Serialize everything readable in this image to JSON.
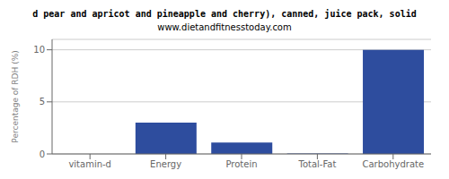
{
  "chart_data": {
    "type": "bar",
    "title": "d pear and apricot and pineapple and cherry), canned, juice pack, solid",
    "subtitle": "www.dietandfitnesstoday.com",
    "categories": [
      "vitamin-d",
      "Energy",
      "Protein",
      "Total-Fat",
      "Carbohydrate"
    ],
    "values": [
      0,
      3.0,
      1.1,
      0.05,
      10.0
    ],
    "color": "#2e4d9e",
    "ylabel": "Percentage of RDH (%)",
    "ylim": [
      0,
      11
    ],
    "yticks": [
      0,
      5,
      10
    ],
    "grid": true
  }
}
